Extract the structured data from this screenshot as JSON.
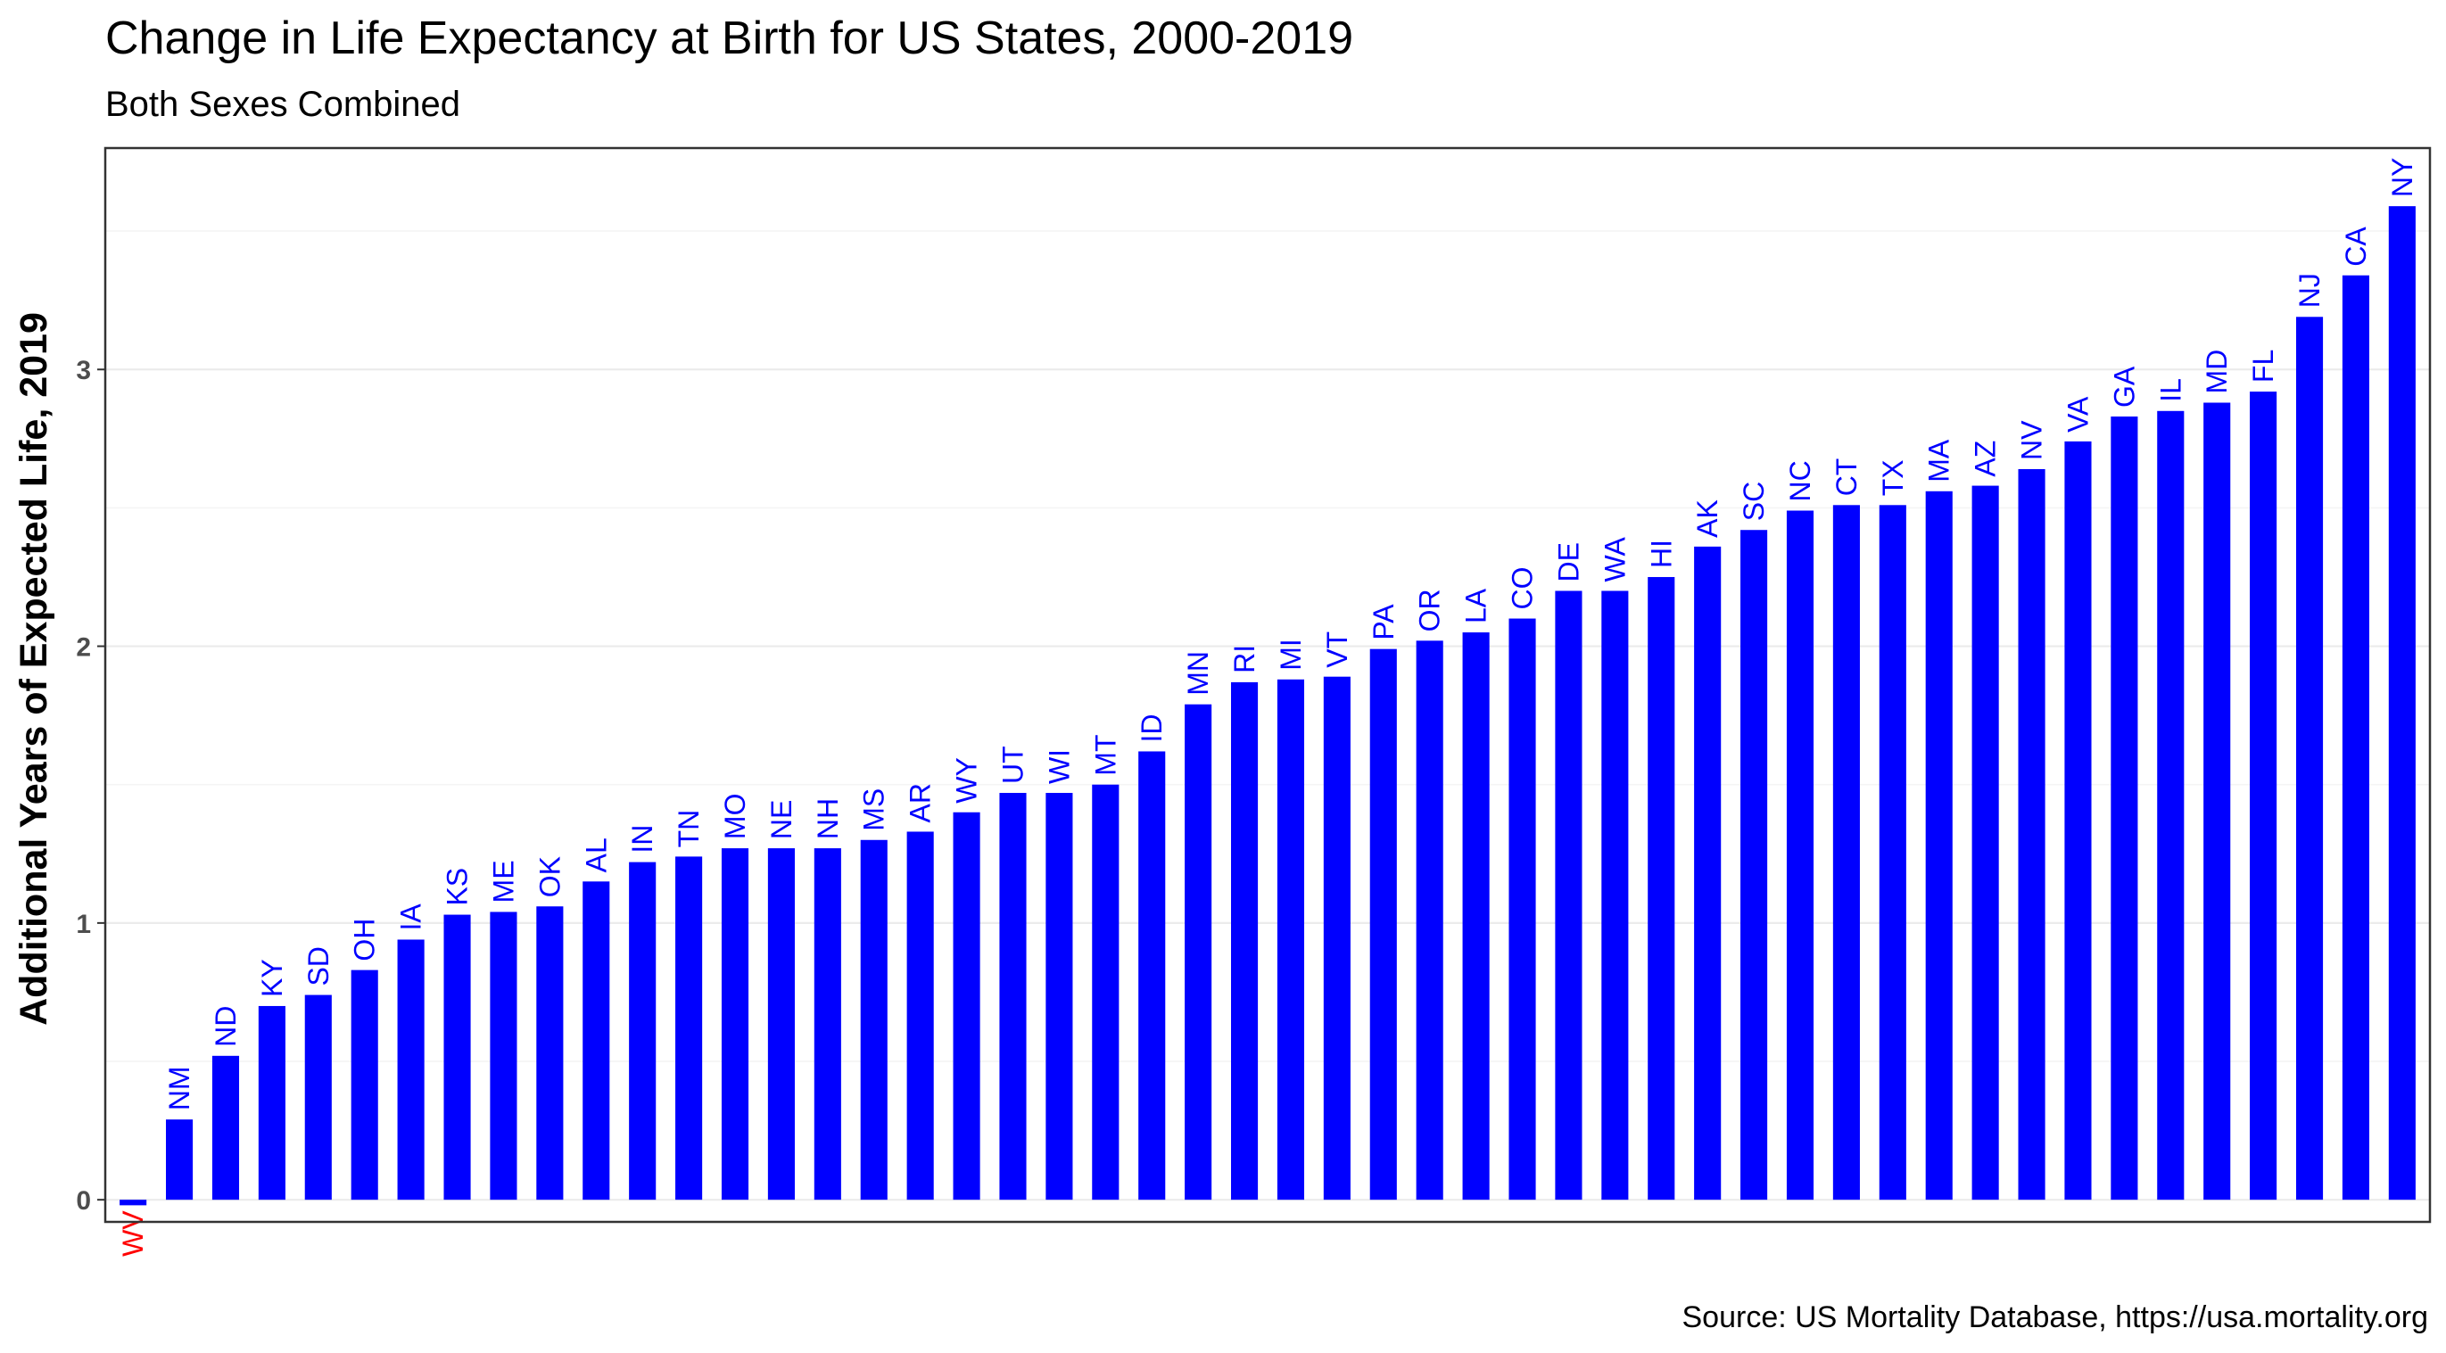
{
  "chart_data": {
    "type": "bar",
    "title": "Change in Life Expectancy at Birth for US States, 2000-2019",
    "subtitle": "Both Sexes Combined",
    "ylabel": "Additional Years of Expected Life, 2019",
    "xlabel": "",
    "caption": "Source: US Mortality Database, https://usa.mortality.org",
    "ylim": [
      -0.08,
      3.8
    ],
    "yticks": [
      0,
      1,
      2,
      3
    ],
    "grid": true,
    "legend": "none",
    "bar_color": "#0000ff",
    "label_color": "#0000ff",
    "negative_label_color": "#ff0000",
    "categories": [
      "WV",
      "NM",
      "ND",
      "KY",
      "SD",
      "OH",
      "IA",
      "KS",
      "ME",
      "OK",
      "AL",
      "IN",
      "TN",
      "MO",
      "NE",
      "NH",
      "MS",
      "AR",
      "WY",
      "UT",
      "WI",
      "MT",
      "ID",
      "MN",
      "RI",
      "MI",
      "VT",
      "PA",
      "OR",
      "LA",
      "CO",
      "DE",
      "WA",
      "HI",
      "AK",
      "SC",
      "NC",
      "CT",
      "TX",
      "MA",
      "AZ",
      "NV",
      "VA",
      "GA",
      "IL",
      "MD",
      "FL",
      "NJ",
      "CA",
      "NY"
    ],
    "values": [
      -0.02,
      0.29,
      0.52,
      0.7,
      0.74,
      0.83,
      0.94,
      1.03,
      1.04,
      1.06,
      1.15,
      1.22,
      1.24,
      1.27,
      1.27,
      1.27,
      1.3,
      1.33,
      1.4,
      1.47,
      1.47,
      1.5,
      1.62,
      1.79,
      1.87,
      1.88,
      1.89,
      1.99,
      2.02,
      2.05,
      2.1,
      2.2,
      2.2,
      2.25,
      2.36,
      2.42,
      2.49,
      2.51,
      2.51,
      2.56,
      2.58,
      2.64,
      2.74,
      2.83,
      2.85,
      2.88,
      2.92,
      3.19,
      3.34,
      3.59
    ]
  }
}
